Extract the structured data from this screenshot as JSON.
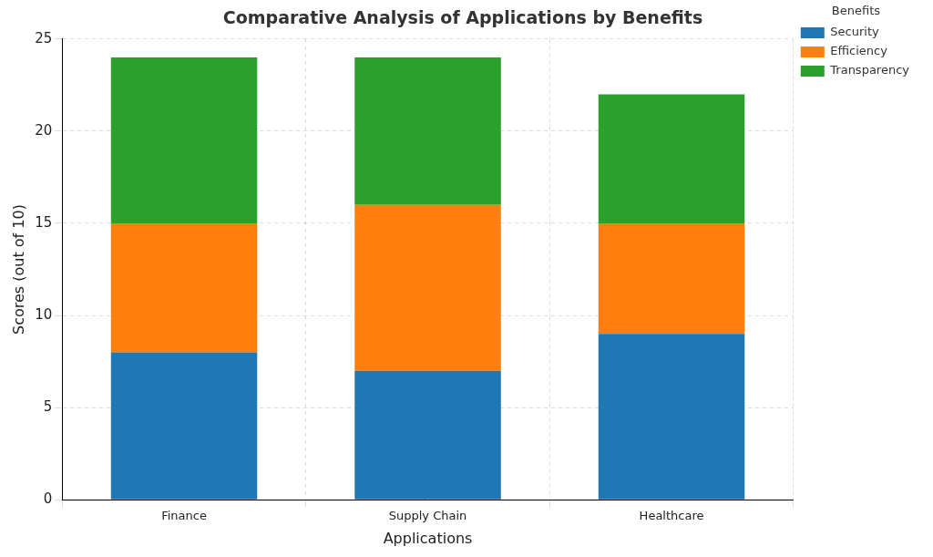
{
  "chart_data": {
    "type": "bar",
    "title": "Comparative Analysis of Applications by Benefits",
    "x_label": "Applications",
    "y_label": "Scores (out of 10)",
    "categories": [
      "Finance",
      "Supply Chain",
      "Healthcare"
    ],
    "series": [
      {
        "name": "Security",
        "color": "#1f77b4",
        "values": [
          8,
          7,
          9
        ]
      },
      {
        "name": "Efficiency",
        "color": "#ff7f0e",
        "values": [
          7,
          9,
          6
        ]
      },
      {
        "name": "Transparency",
        "color": "#2ca02c",
        "values": [
          9,
          8,
          7
        ]
      }
    ],
    "stacked": true,
    "ylim": [
      0,
      25
    ],
    "yticks": [
      0,
      5,
      10,
      15,
      20,
      25
    ],
    "grid": true,
    "legend": "upper right",
    "legend_title": "Benefits"
  }
}
